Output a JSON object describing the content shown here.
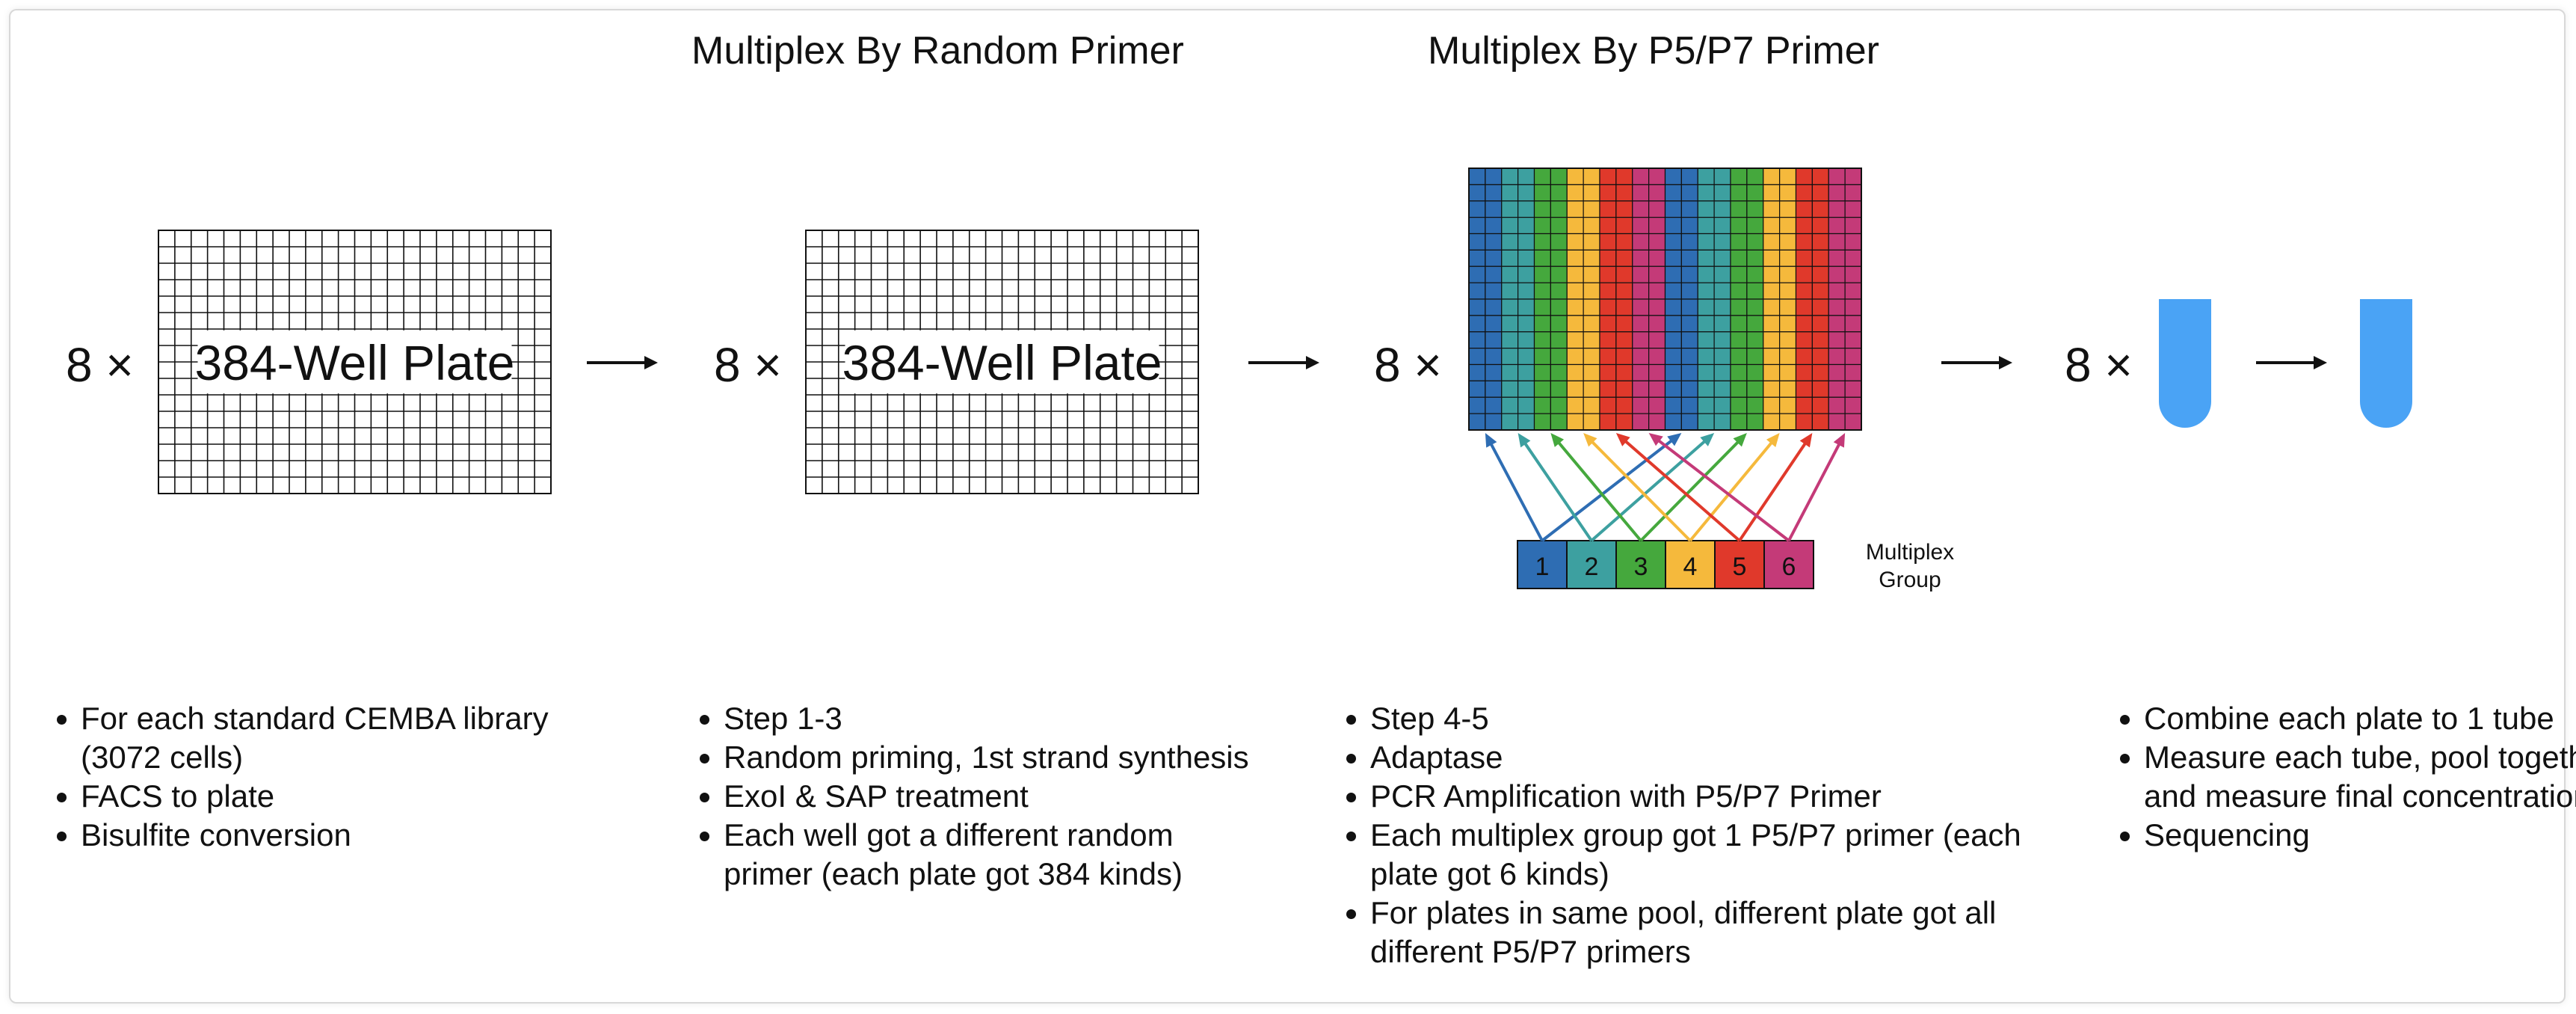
{
  "headings": {
    "random_primer": "Multiplex By Random Primer",
    "p5p7_primer": "Multiplex By P5/P7 Primer"
  },
  "multiplier": "8 ×",
  "plate_label": "384-Well Plate",
  "multiplex_group_label": [
    "Multiplex",
    "Group"
  ],
  "group_numbers": [
    "1",
    "2",
    "3",
    "4",
    "5",
    "6"
  ],
  "group_colors": [
    "#2e6db3",
    "#3da0a0",
    "#45a83d",
    "#f5b93c",
    "#e0392b",
    "#c43a78"
  ],
  "tube_color": "#4aa3f5",
  "steps": [
    {
      "bullets": [
        "For each standard CEMBA library (3072 cells)",
        "FACS to plate",
        "Bisulfite conversion"
      ]
    },
    {
      "bullets": [
        "Step 1-3",
        "Random priming, 1st strand synthesis",
        "ExoI & SAP treatment",
        "Each well got a different random primer (each plate got 384 kinds)"
      ]
    },
    {
      "bullets": [
        "Step 4-5",
        "Adaptase",
        "PCR Amplification with P5/P7 Primer",
        "Each multiplex group got 1 P5/P7 primer (each plate got 6 kinds)",
        "For plates in same pool, different plate got all different P5/P7 primers"
      ]
    },
    {
      "bullets": [
        "Combine each plate to 1 tube",
        "Measure each tube, pool together and measure final concentration",
        "Sequencing"
      ]
    }
  ]
}
